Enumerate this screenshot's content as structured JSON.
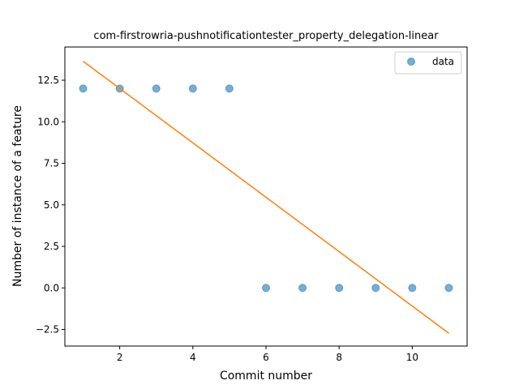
{
  "chart_data": {
    "type": "scatter",
    "title": "com-firstrowria-pushnotificationtester_property_delegation-linear",
    "xlabel": "Commit number",
    "ylabel": "Number of instance of a feature",
    "xlim": [
      0.5,
      11.5
    ],
    "ylim": [
      -3.5,
      14.5
    ],
    "xticks": [
      2,
      4,
      6,
      8,
      10
    ],
    "xtick_labels": [
      "2",
      "4",
      "6",
      "8",
      "10"
    ],
    "yticks": [
      -2.5,
      0.0,
      2.5,
      5.0,
      7.5,
      10.0,
      12.5
    ],
    "ytick_labels": [
      "−2.5",
      "0.0",
      "2.5",
      "5.0",
      "7.5",
      "10.0",
      "12.5"
    ],
    "grid": false,
    "legend_position": "top-right",
    "series": [
      {
        "name": "data",
        "kind": "scatter",
        "color": "#1f77b4",
        "x": [
          1,
          2,
          3,
          4,
          5,
          6,
          7,
          8,
          9,
          10,
          11
        ],
        "y": [
          12,
          12,
          12,
          12,
          12,
          0,
          0,
          0,
          0,
          0,
          0
        ]
      },
      {
        "kind": "line",
        "color": "#ff7f0e",
        "x": [
          1,
          11
        ],
        "y": [
          13.64,
          -2.73
        ]
      }
    ]
  }
}
